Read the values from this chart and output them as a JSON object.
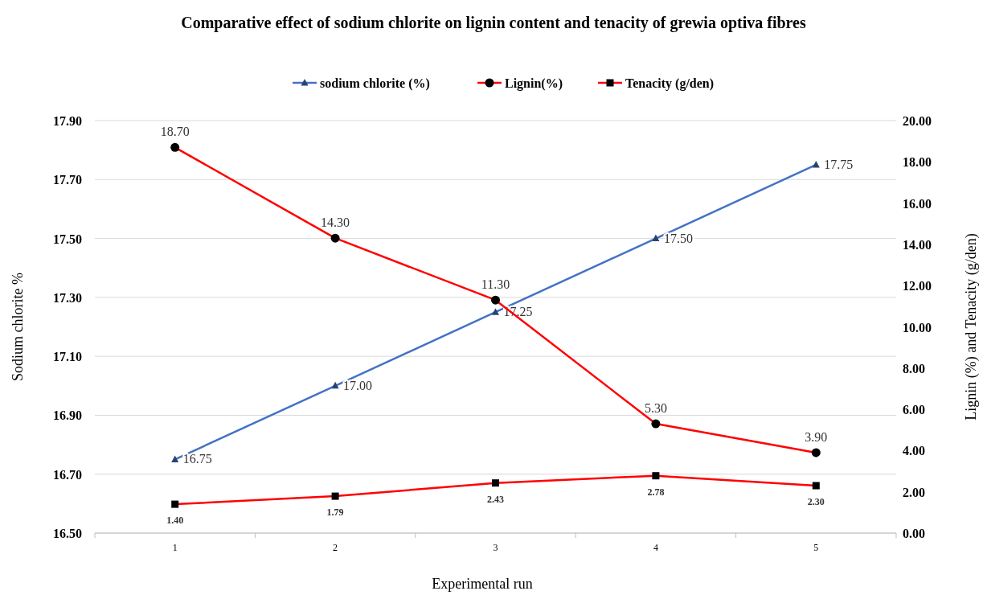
{
  "chart_data": {
    "type": "line",
    "title": "Comparative effect of sodium chlorite on lignin content and tenacity of grewia optiva fibres",
    "xlabel": "Experimental run",
    "ylabel": "Sodium chlorite %",
    "y2label": "Lignin (%) and Tenacity (g/den)",
    "categories": [
      "1",
      "2",
      "3",
      "4",
      "5"
    ],
    "series": [
      {
        "name": "sodium chlorite (%)",
        "color": "#4472c4",
        "marker": "triangle",
        "values": [
          16.75,
          17.0,
          17.25,
          17.5,
          17.75
        ],
        "value_labels": [
          "16.75",
          "17.00",
          "17.25",
          "17.50",
          "17.75"
        ]
      },
      {
        "name": "Lignin(%)",
        "color": "#ff0000",
        "marker": "circle",
        "axis": "y2",
        "values": [
          18.7,
          14.3,
          11.3,
          5.3,
          3.9
        ],
        "value_labels": [
          "18.70",
          "14.30",
          "11.30",
          "5.30",
          "3.90"
        ]
      },
      {
        "name": "Tenacity (g/den)",
        "color": "#ff0000",
        "marker": "square",
        "axis": "y2",
        "values": [
          1.4,
          1.79,
          2.43,
          2.78,
          2.3
        ],
        "value_labels": [
          "1.40",
          "1.79",
          "2.43",
          "2.78",
          "2.30"
        ]
      }
    ],
    "ylim": [
      16.5,
      17.9
    ],
    "yticks": [
      {
        "value": 16.5,
        "label": "16.50"
      },
      {
        "value": 16.7,
        "label": "16.70"
      },
      {
        "value": 16.9,
        "label": "16.90"
      },
      {
        "value": 17.1,
        "label": "17.10"
      },
      {
        "value": 17.3,
        "label": "17.30"
      },
      {
        "value": 17.5,
        "label": "17.50"
      },
      {
        "value": 17.7,
        "label": "17.70"
      },
      {
        "value": 17.9,
        "label": "17.90"
      }
    ],
    "y2lim": [
      0,
      20
    ],
    "y2ticks": [
      {
        "value": 0,
        "label": "0.00"
      },
      {
        "value": 2,
        "label": "2.00"
      },
      {
        "value": 4,
        "label": "4.00"
      },
      {
        "value": 6,
        "label": "6.00"
      },
      {
        "value": 8,
        "label": "8.00"
      },
      {
        "value": 10,
        "label": "10.00"
      },
      {
        "value": 12,
        "label": "12.00"
      },
      {
        "value": 14,
        "label": "14.00"
      },
      {
        "value": 16,
        "label": "16.00"
      },
      {
        "value": 18,
        "label": "18.00"
      },
      {
        "value": 20,
        "label": "20.00"
      }
    ],
    "grid": "y",
    "legend": "top"
  }
}
